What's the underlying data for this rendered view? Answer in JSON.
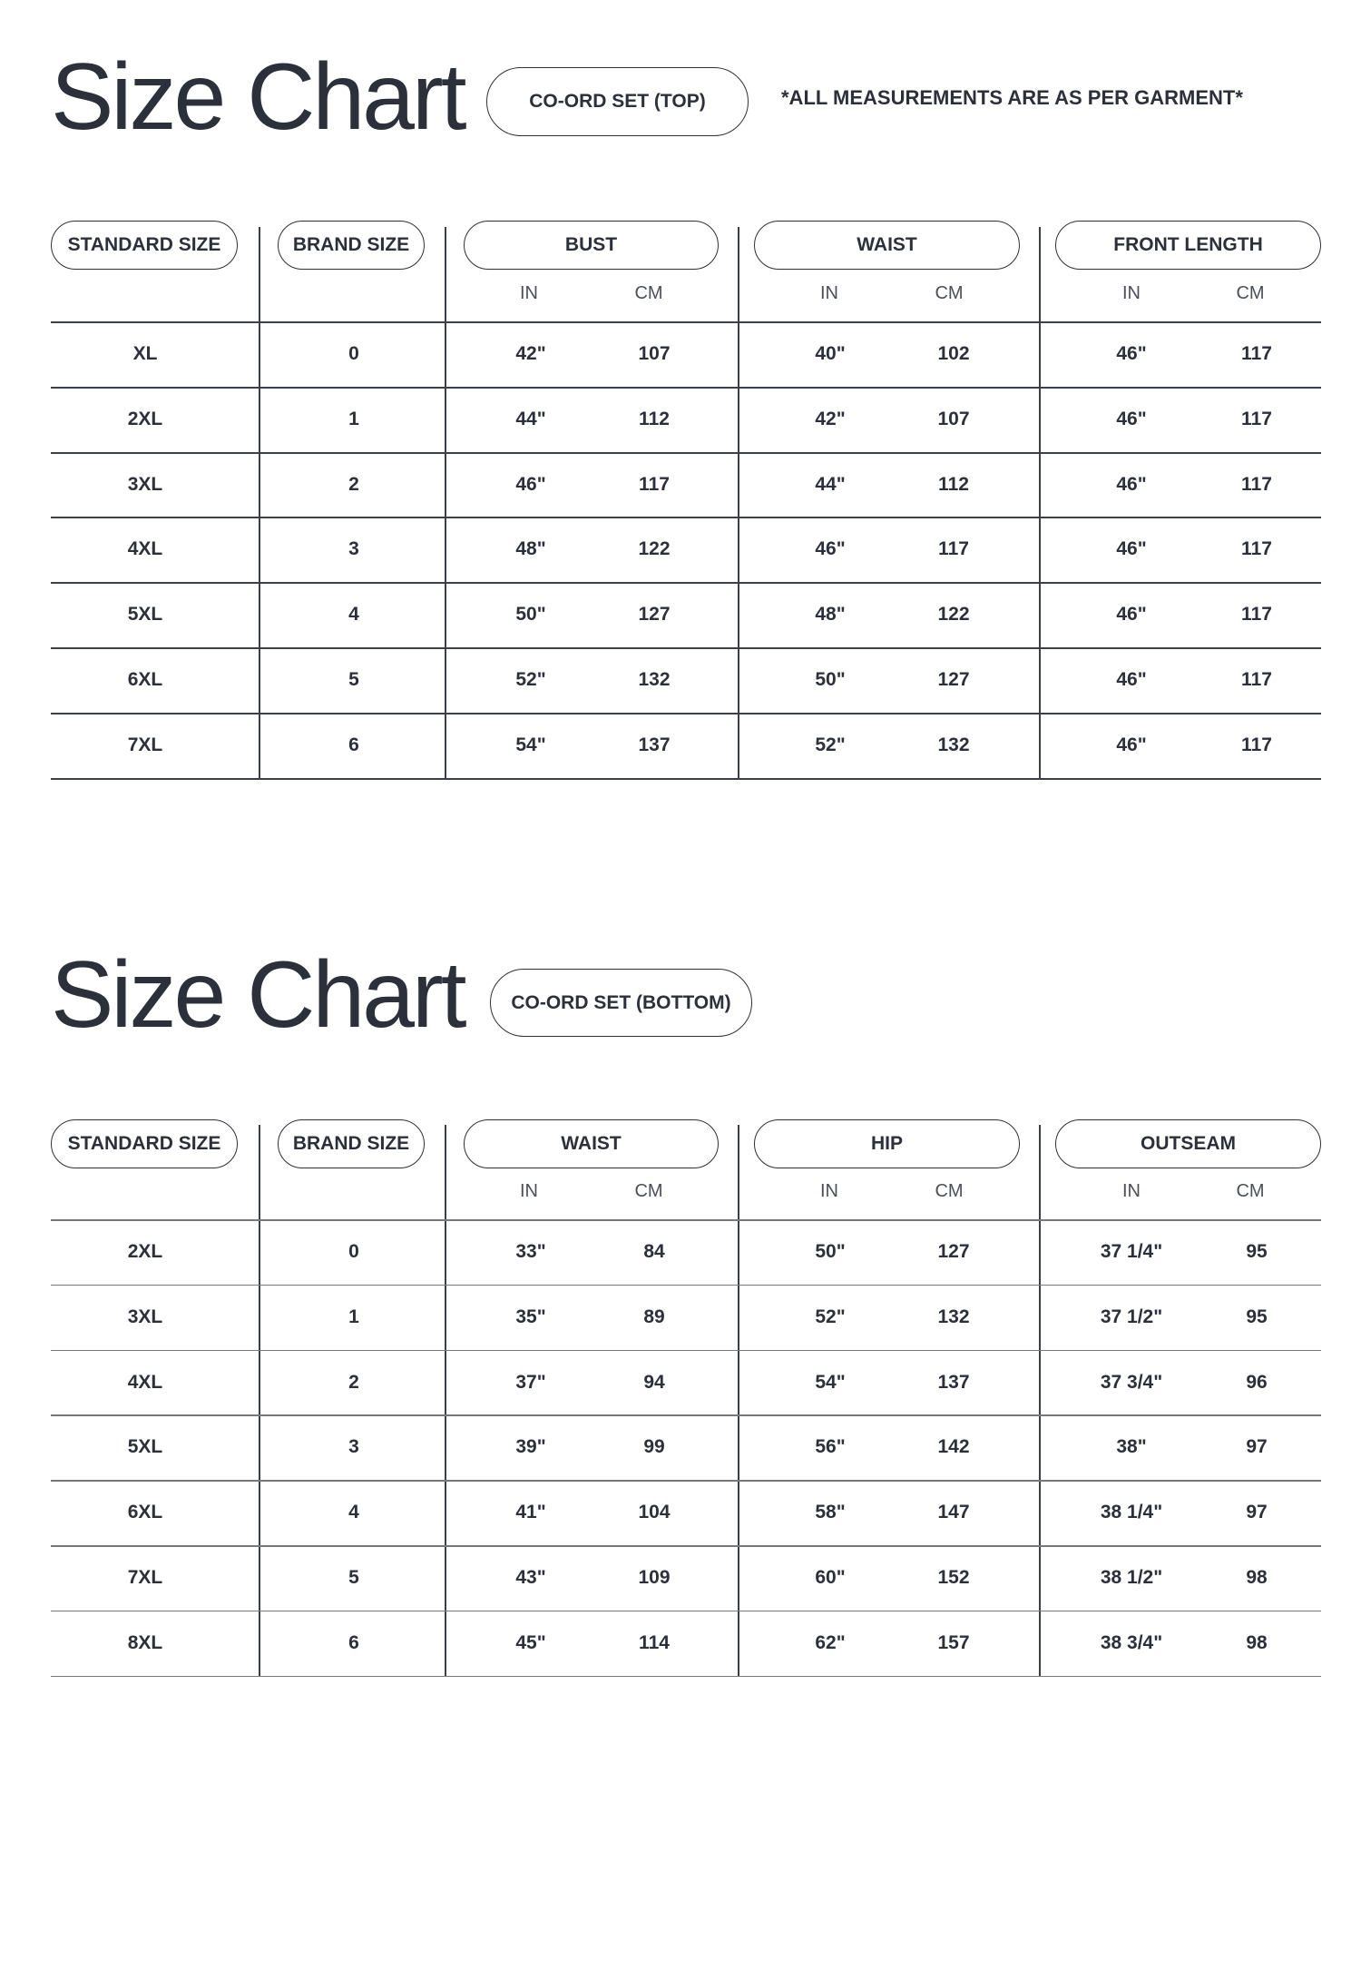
{
  "note": "*ALL MEASUREMENTS ARE AS PER GARMENT*",
  "sections": [
    {
      "title": "Size Chart",
      "tag": "CO-ORD SET (TOP)",
      "headers": [
        "STANDARD SIZE",
        "BRAND SIZE",
        "BUST",
        "WAIST",
        "FRONT LENGTH"
      ],
      "units": [
        "IN",
        "CM",
        "IN",
        "CM",
        "IN",
        "CM"
      ],
      "rows": [
        [
          "XL",
          "0",
          "42\"",
          "107",
          "40\"",
          "102",
          "46\"",
          "117"
        ],
        [
          "2XL",
          "1",
          "44\"",
          "112",
          "42\"",
          "107",
          "46\"",
          "117"
        ],
        [
          "3XL",
          "2",
          "46\"",
          "117",
          "44\"",
          "112",
          "46\"",
          "117"
        ],
        [
          "4XL",
          "3",
          "48\"",
          "122",
          "46\"",
          "117",
          "46\"",
          "117"
        ],
        [
          "5XL",
          "4",
          "50\"",
          "127",
          "48\"",
          "122",
          "46\"",
          "117"
        ],
        [
          "6XL",
          "5",
          "52\"",
          "132",
          "50\"",
          "127",
          "46\"",
          "117"
        ],
        [
          "7XL",
          "6",
          "54\"",
          "137",
          "52\"",
          "132",
          "46\"",
          "117"
        ]
      ]
    },
    {
      "title": "Size Chart",
      "tag": "CO-ORD SET (BOTTOM)",
      "headers": [
        "STANDARD SIZE",
        "BRAND SIZE",
        "WAIST",
        "HIP",
        "OUTSEAM"
      ],
      "units": [
        "IN",
        "CM",
        "IN",
        "CM",
        "IN",
        "CM"
      ],
      "rows": [
        [
          "2XL",
          "0",
          "33\"",
          "84",
          "50\"",
          "127",
          "37 1/4\"",
          "95"
        ],
        [
          "3XL",
          "1",
          "35\"",
          "89",
          "52\"",
          "132",
          "37 1/2\"",
          "95"
        ],
        [
          "4XL",
          "2",
          "37\"",
          "94",
          "54\"",
          "137",
          "37 3/4\"",
          "96"
        ],
        [
          "5XL",
          "3",
          "39\"",
          "99",
          "56\"",
          "142",
          "38\"",
          "97"
        ],
        [
          "6XL",
          "4",
          "41\"",
          "104",
          "58\"",
          "147",
          "38 1/4\"",
          "97"
        ],
        [
          "7XL",
          "5",
          "43\"",
          "109",
          "60\"",
          "152",
          "38 1/2\"",
          "98"
        ],
        [
          "8XL",
          "6",
          "45\"",
          "114",
          "62\"",
          "157",
          "38 3/4\"",
          "98"
        ]
      ]
    }
  ]
}
